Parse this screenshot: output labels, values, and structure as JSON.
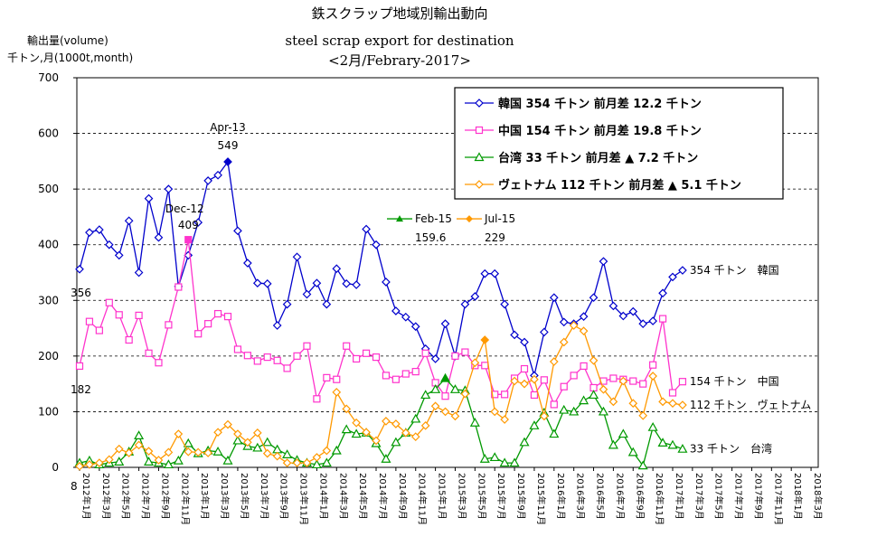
{
  "chart_data": {
    "type": "line",
    "title": "鉄スクラップ地域別輸出動向",
    "subtitle": "steel scrap export for destination",
    "period": "<2月/Febrary-2017>",
    "ylabel_line1": "輸出量(volume)",
    "ylabel_line2": "千トン,月(1000t,month)",
    "ylim": [
      0,
      700
    ],
    "yticks": [
      0,
      100,
      200,
      300,
      400,
      500,
      600,
      700
    ],
    "grid": true,
    "legend_position": "top-right",
    "x_tick_labels": [
      "2012年1月",
      "2012年3月",
      "2012年5月",
      "2012年7月",
      "2012年9月",
      "2012年11月",
      "2013年1月",
      "2013年3月",
      "2013年5月",
      "2013年7月",
      "2013年9月",
      "2013年11月",
      "2014年1月",
      "2014年3月",
      "2014年5月",
      "2014年7月",
      "2014年9月",
      "2014年11月",
      "2015年1月",
      "2015年3月",
      "2015年5月",
      "2015年7月",
      "2015年9月",
      "2015年11月",
      "2016年1月",
      "2016年3月",
      "2016年5月",
      "2016年7月",
      "2016年9月",
      "2016年11月",
      "2017年1月",
      "2017年3月",
      "2017年5月",
      "2017年7月",
      "2017年9月",
      "2017年11月",
      "2018年1月",
      "2018年3月"
    ],
    "x_tick_count_months": 75,
    "series": [
      {
        "name": "韓国",
        "color": "#0000cc",
        "marker": "diamond",
        "legend": "韓国 354 千トン 前月差 12.2 千トン",
        "end_label": "354 千トン　韓国",
        "values": [
          356,
          422,
          427,
          400,
          381,
          443,
          350,
          483,
          413,
          500,
          325,
          381,
          440,
          515,
          525,
          549,
          425,
          367,
          331,
          330,
          255,
          293,
          378,
          311,
          331,
          293,
          357,
          330,
          328,
          428,
          400,
          333,
          281,
          270,
          253,
          213,
          195,
          258,
          200,
          293,
          307,
          348,
          348,
          293,
          238,
          225,
          165,
          243,
          305,
          261,
          258,
          271,
          305,
          370,
          290,
          272,
          280,
          258,
          263,
          313,
          342,
          354
        ]
      },
      {
        "name": "中国",
        "color": "#ff33cc",
        "marker": "square",
        "legend": "中国 154 千トン 前月差 19.8 千トン",
        "end_label": "154 千トン　中国",
        "values": [
          182,
          262,
          246,
          296,
          274,
          229,
          273,
          205,
          188,
          256,
          324,
          409,
          240,
          258,
          276,
          271,
          212,
          201,
          191,
          198,
          192,
          178,
          200,
          218,
          123,
          161,
          158,
          218,
          195,
          205,
          198,
          165,
          158,
          168,
          172,
          205,
          152,
          128,
          200,
          207,
          183,
          183,
          131,
          131,
          160,
          177,
          130,
          157,
          113,
          145,
          165,
          182,
          143,
          155,
          160,
          158,
          155,
          150,
          184,
          267,
          134,
          154
        ]
      },
      {
        "name": "台湾",
        "color": "#009900",
        "marker": "triangle",
        "legend": "台湾 33 千トン 前月差 ▲ 7.2 千トン",
        "end_label": "33 千トン　台湾",
        "values": [
          8,
          12,
          5,
          8,
          10,
          28,
          57,
          10,
          8,
          5,
          12,
          43,
          25,
          30,
          28,
          12,
          48,
          38,
          35,
          45,
          32,
          23,
          13,
          8,
          5,
          8,
          30,
          68,
          60,
          62,
          43,
          15,
          45,
          62,
          87,
          130,
          140,
          160,
          140,
          138,
          80,
          15,
          18,
          8,
          8,
          45,
          75,
          98,
          60,
          103,
          100,
          120,
          130,
          100,
          40,
          60,
          27,
          3,
          72,
          44,
          40,
          33
        ]
      },
      {
        "name": "ヴェトナム",
        "color": "#ff9900",
        "marker": "diamond",
        "legend": "ヴェトナム 112 千トン 前月差 ▲ 5.1 千トン",
        "end_label": "112 千トン　ヴェトナム",
        "values": [
          2,
          5,
          8,
          14,
          33,
          26,
          40,
          29,
          13,
          27,
          60,
          28,
          27,
          26,
          63,
          77,
          60,
          45,
          62,
          25,
          20,
          8,
          8,
          8,
          18,
          30,
          135,
          105,
          80,
          63,
          48,
          83,
          78,
          62,
          55,
          75,
          110,
          100,
          92,
          132,
          188,
          229,
          100,
          86,
          155,
          150,
          158,
          92,
          190,
          225,
          255,
          245,
          192,
          140,
          118,
          155,
          115,
          93,
          164,
          118,
          115,
          112
        ]
      }
    ],
    "annotations": [
      {
        "series": "韓国",
        "label": "Apr-13",
        "value_label": "549",
        "index": 15
      },
      {
        "series": "中国",
        "label": "Dec-12",
        "value_label": "409",
        "index": 11
      },
      {
        "series": "台湾",
        "label": "Feb-15",
        "value_label": "159.6",
        "index": 37
      },
      {
        "series": "ヴェトナム",
        "label": "Jul-15",
        "value_label": "229",
        "index": 41
      }
    ],
    "start_labels": [
      {
        "series": "韓国",
        "text": "356"
      },
      {
        "series": "中国",
        "text": "182"
      },
      {
        "series": "台湾",
        "text": "8"
      }
    ]
  }
}
